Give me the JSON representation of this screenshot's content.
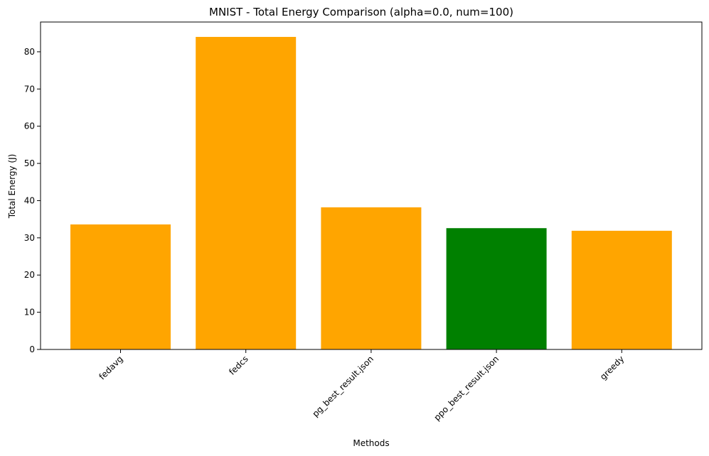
{
  "chart_data": {
    "type": "bar",
    "title": "MNIST - Total Energy Comparison (alpha=0.0, num=100)",
    "xlabel": "Methods",
    "ylabel": "Total Energy (J)",
    "categories": [
      "fedavg",
      "fedcs",
      "pg_best_result.json",
      "ppo_best_result.json",
      "greedy"
    ],
    "values": [
      33.6,
      84.0,
      38.2,
      32.6,
      31.9
    ],
    "bar_colors": [
      "#FFA500",
      "#FFA500",
      "#FFA500",
      "#008000",
      "#FFA500"
    ],
    "ylim": [
      0,
      88
    ],
    "yticks": [
      0,
      10,
      20,
      30,
      40,
      50,
      60,
      70,
      80
    ],
    "grid": false,
    "legend": "none"
  }
}
